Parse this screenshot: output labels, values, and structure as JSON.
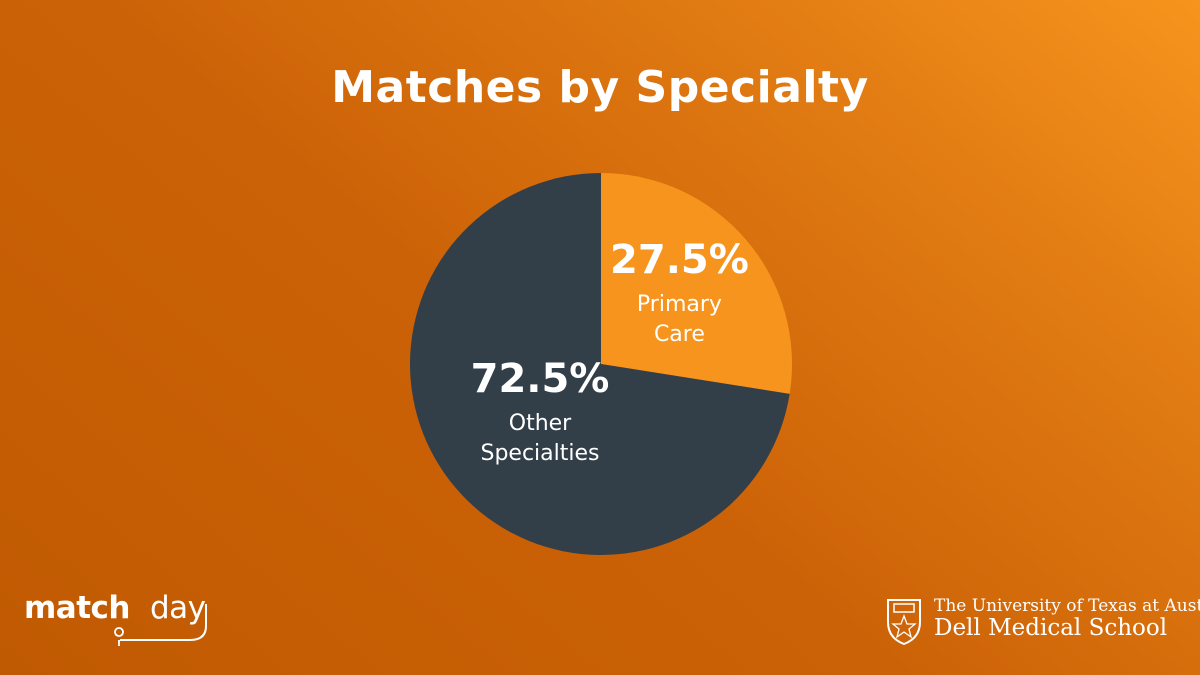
{
  "chart_data": {
    "type": "pie",
    "title": "Matches by Specialty",
    "slices": [
      {
        "label_lines": [
          "Primary",
          "Care"
        ],
        "value": 27.5,
        "value_label": "27.5%",
        "color": "#f7941d"
      },
      {
        "label_lines": [
          "Other",
          "Specialties"
        ],
        "value": 72.5,
        "value_label": "72.5%",
        "color": "#333f48"
      }
    ],
    "start": "12 o'clock",
    "direction": "clockwise"
  },
  "footer": {
    "match_day": {
      "word1": "match",
      "word2": "day"
    },
    "university": {
      "line1": "The University of Texas at Austin",
      "line2": "Dell Medical School"
    }
  },
  "colors": {
    "background": "#cc6207",
    "text": "#ffffff"
  }
}
